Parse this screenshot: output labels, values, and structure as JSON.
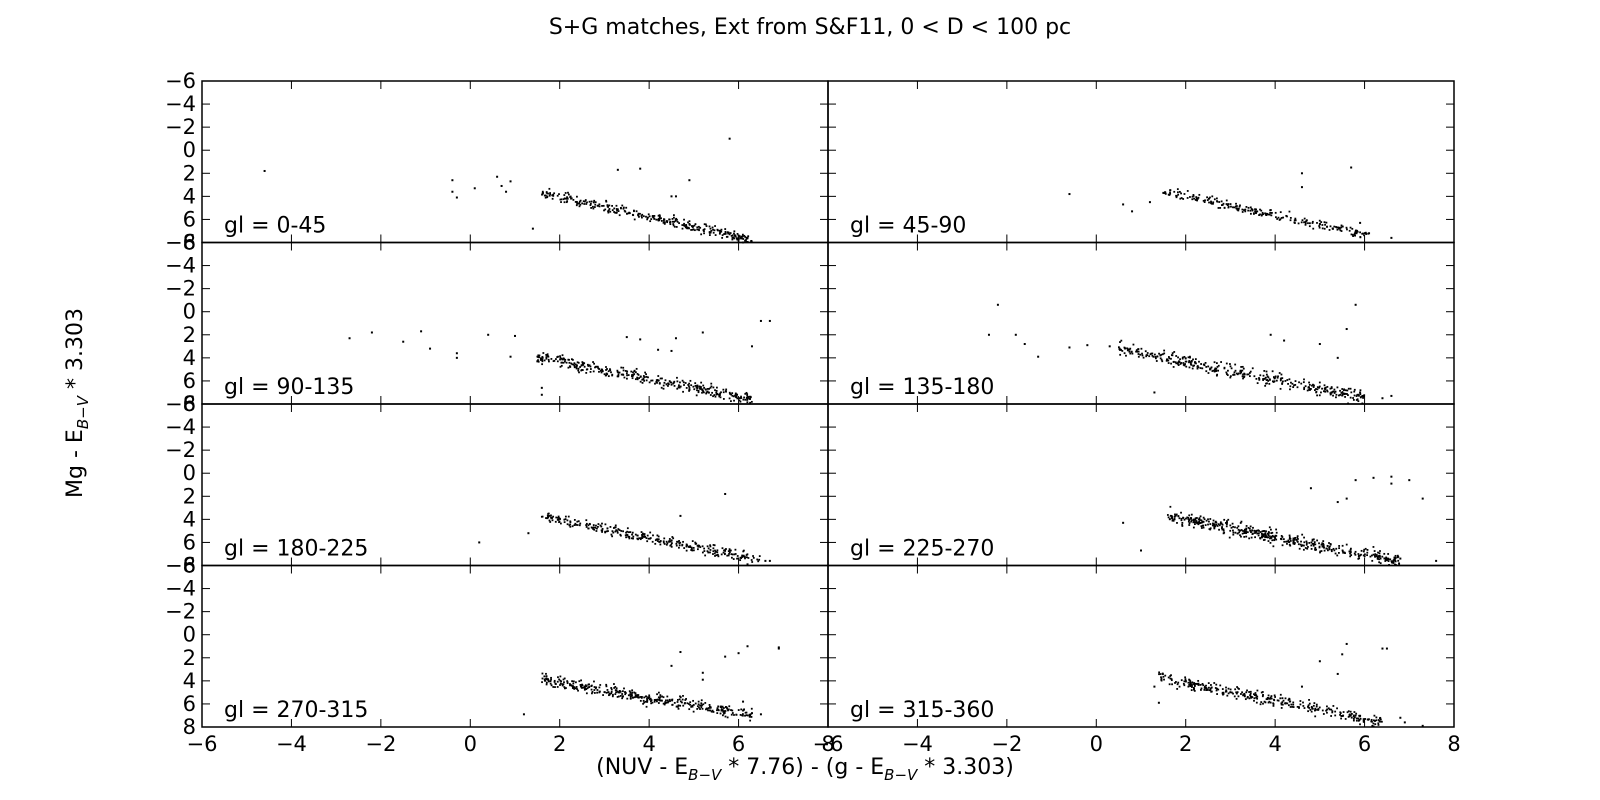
{
  "chart_data": {
    "type": "scatter",
    "title": "S+G matches, Ext from S&F11, 0 < D < 100 pc",
    "xlabel": {
      "parts": [
        "(NUV - E",
        "B−V",
        " * 7.76) - (g - E",
        "B−V",
        " * 3.303)"
      ],
      "text": "(NUV - E_{B-V} * 7.76) - (g - E_{B-V} * 3.303)"
    },
    "ylabel": {
      "parts": [
        "Mg - E",
        "B−V",
        " * 3.303"
      ],
      "text": "Mg - E_{B-V} * 3.303"
    },
    "xlim": [
      -6,
      8
    ],
    "ylim": [
      8,
      -6
    ],
    "y_inverted": true,
    "xticks": [
      -6,
      -4,
      -2,
      0,
      2,
      4,
      6,
      8
    ],
    "yticks": [
      -6,
      -4,
      -2,
      0,
      2,
      4,
      6,
      8
    ],
    "marker_color": "#000000",
    "layout": "4 rows x 2 columns, shared axes",
    "panels": [
      {
        "label": "gl = 0-45",
        "outliers": [
          [
            -4.6,
            1.8
          ],
          [
            -0.4,
            2.6
          ],
          [
            -0.4,
            3.6
          ],
          [
            -0.3,
            4.1
          ],
          [
            0.1,
            3.3
          ],
          [
            0.6,
            2.3
          ],
          [
            0.7,
            3.1
          ],
          [
            0.8,
            3.6
          ],
          [
            0.9,
            2.7
          ],
          [
            1.4,
            6.8
          ],
          [
            3.3,
            1.7
          ],
          [
            3.8,
            1.6
          ],
          [
            4.5,
            4.0
          ],
          [
            4.6,
            4.0
          ],
          [
            4.9,
            2.6
          ],
          [
            5.8,
            -1.0
          ],
          [
            6.0,
            7.4
          ],
          [
            6.1,
            8.0
          ]
        ],
        "cluster": {
          "n": 320,
          "x": [
            1.6,
            6.3
          ],
          "y_at_xmin": 3.7,
          "y_at_xmax": 7.8,
          "spread": 0.7
        }
      },
      {
        "label": "gl = 45-90",
        "outliers": [
          [
            -0.6,
            3.8
          ],
          [
            0.6,
            4.7
          ],
          [
            0.8,
            5.3
          ],
          [
            1.2,
            4.5
          ],
          [
            1.5,
            3.7
          ],
          [
            4.6,
            2.0
          ],
          [
            4.6,
            3.2
          ],
          [
            5.7,
            1.5
          ],
          [
            5.9,
            6.3
          ],
          [
            6.1,
            7.2
          ],
          [
            6.6,
            7.6
          ]
        ],
        "cluster": {
          "n": 240,
          "x": [
            1.5,
            6.1
          ],
          "y_at_xmin": 3.6,
          "y_at_xmax": 7.4,
          "spread": 0.6
        }
      },
      {
        "label": "gl = 90-135",
        "outliers": [
          [
            -2.7,
            2.3
          ],
          [
            -2.2,
            1.8
          ],
          [
            -1.5,
            2.6
          ],
          [
            -1.1,
            1.7
          ],
          [
            -0.9,
            3.2
          ],
          [
            -0.3,
            3.6
          ],
          [
            -0.3,
            4.0
          ],
          [
            0.4,
            2.0
          ],
          [
            0.9,
            3.9
          ],
          [
            1.0,
            2.1
          ],
          [
            1.5,
            4.3
          ],
          [
            1.6,
            6.6
          ],
          [
            1.6,
            7.2
          ],
          [
            3.5,
            2.2
          ],
          [
            3.8,
            2.4
          ],
          [
            4.2,
            3.3
          ],
          [
            4.5,
            3.4
          ],
          [
            4.6,
            2.3
          ],
          [
            5.2,
            1.8
          ],
          [
            6.3,
            3.0
          ],
          [
            6.5,
            0.8
          ],
          [
            6.7,
            0.8
          ]
        ],
        "cluster": {
          "n": 360,
          "x": [
            1.5,
            6.3
          ],
          "y_at_xmin": 3.9,
          "y_at_xmax": 7.6,
          "spread": 0.8
        }
      },
      {
        "label": "gl = 135-180",
        "outliers": [
          [
            -2.2,
            -0.6
          ],
          [
            -2.4,
            2.0
          ],
          [
            -1.8,
            2.0
          ],
          [
            -1.6,
            2.8
          ],
          [
            -1.3,
            3.9
          ],
          [
            -0.6,
            3.1
          ],
          [
            -0.2,
            2.9
          ],
          [
            0.3,
            3.0
          ],
          [
            1.3,
            7.0
          ],
          [
            3.9,
            2.0
          ],
          [
            4.2,
            2.5
          ],
          [
            5.0,
            2.8
          ],
          [
            5.4,
            4.0
          ],
          [
            5.6,
            1.5
          ],
          [
            5.8,
            -0.6
          ],
          [
            5.9,
            7.0
          ],
          [
            6.4,
            7.5
          ],
          [
            6.6,
            7.3
          ]
        ],
        "cluster": {
          "n": 380,
          "x": [
            0.5,
            6.0
          ],
          "y_at_xmin": 3.2,
          "y_at_xmax": 7.5,
          "spread": 0.9
        }
      },
      {
        "label": "gl = 180-225",
        "outliers": [
          [
            0.2,
            6.0
          ],
          [
            1.3,
            5.2
          ],
          [
            4.7,
            3.7
          ],
          [
            5.7,
            1.8
          ],
          [
            6.2,
            7.9
          ],
          [
            6.6,
            7.6
          ],
          [
            6.7,
            7.6
          ]
        ],
        "cluster": {
          "n": 300,
          "x": [
            1.6,
            6.5
          ],
          "y_at_xmin": 3.8,
          "y_at_xmax": 7.5,
          "spread": 0.7
        }
      },
      {
        "label": "gl = 225-270",
        "outliers": [
          [
            0.6,
            4.3
          ],
          [
            1.0,
            6.7
          ],
          [
            4.8,
            1.3
          ],
          [
            5.4,
            2.5
          ],
          [
            5.6,
            2.2
          ],
          [
            5.8,
            0.6
          ],
          [
            6.2,
            0.4
          ],
          [
            6.6,
            0.3
          ],
          [
            6.6,
            0.9
          ],
          [
            7.0,
            0.6
          ],
          [
            7.3,
            2.2
          ],
          [
            7.6,
            7.6
          ],
          [
            6.8,
            7.4
          ]
        ],
        "cluster": {
          "n": 480,
          "x": [
            1.6,
            6.8
          ],
          "y_at_xmin": 3.7,
          "y_at_xmax": 7.7,
          "spread": 0.9
        }
      },
      {
        "label": "gl = 270-315",
        "outliers": [
          [
            1.2,
            6.9
          ],
          [
            4.5,
            2.7
          ],
          [
            4.7,
            1.5
          ],
          [
            5.2,
            3.3
          ],
          [
            5.2,
            3.9
          ],
          [
            5.7,
            1.9
          ],
          [
            6.0,
            1.6
          ],
          [
            6.1,
            5.8
          ],
          [
            6.2,
            1.0
          ],
          [
            6.3,
            6.8
          ],
          [
            6.9,
            1.2
          ],
          [
            6.9,
            1.1
          ],
          [
            6.5,
            6.9
          ]
        ],
        "cluster": {
          "n": 380,
          "x": [
            1.6,
            6.3
          ],
          "y_at_xmin": 3.9,
          "y_at_xmax": 7.0,
          "spread": 0.8
        }
      },
      {
        "label": "gl = 315-360",
        "outliers": [
          [
            1.3,
            4.5
          ],
          [
            1.4,
            5.9
          ],
          [
            4.6,
            4.5
          ],
          [
            5.0,
            2.3
          ],
          [
            5.4,
            3.4
          ],
          [
            5.5,
            1.7
          ],
          [
            5.6,
            0.8
          ],
          [
            6.4,
            1.2
          ],
          [
            6.5,
            1.2
          ],
          [
            6.8,
            7.2
          ],
          [
            6.9,
            7.6
          ],
          [
            7.3,
            7.9
          ]
        ],
        "cluster": {
          "n": 340,
          "x": [
            1.4,
            6.4
          ],
          "y_at_xmin": 3.7,
          "y_at_xmax": 7.6,
          "spread": 0.8
        }
      }
    ]
  }
}
